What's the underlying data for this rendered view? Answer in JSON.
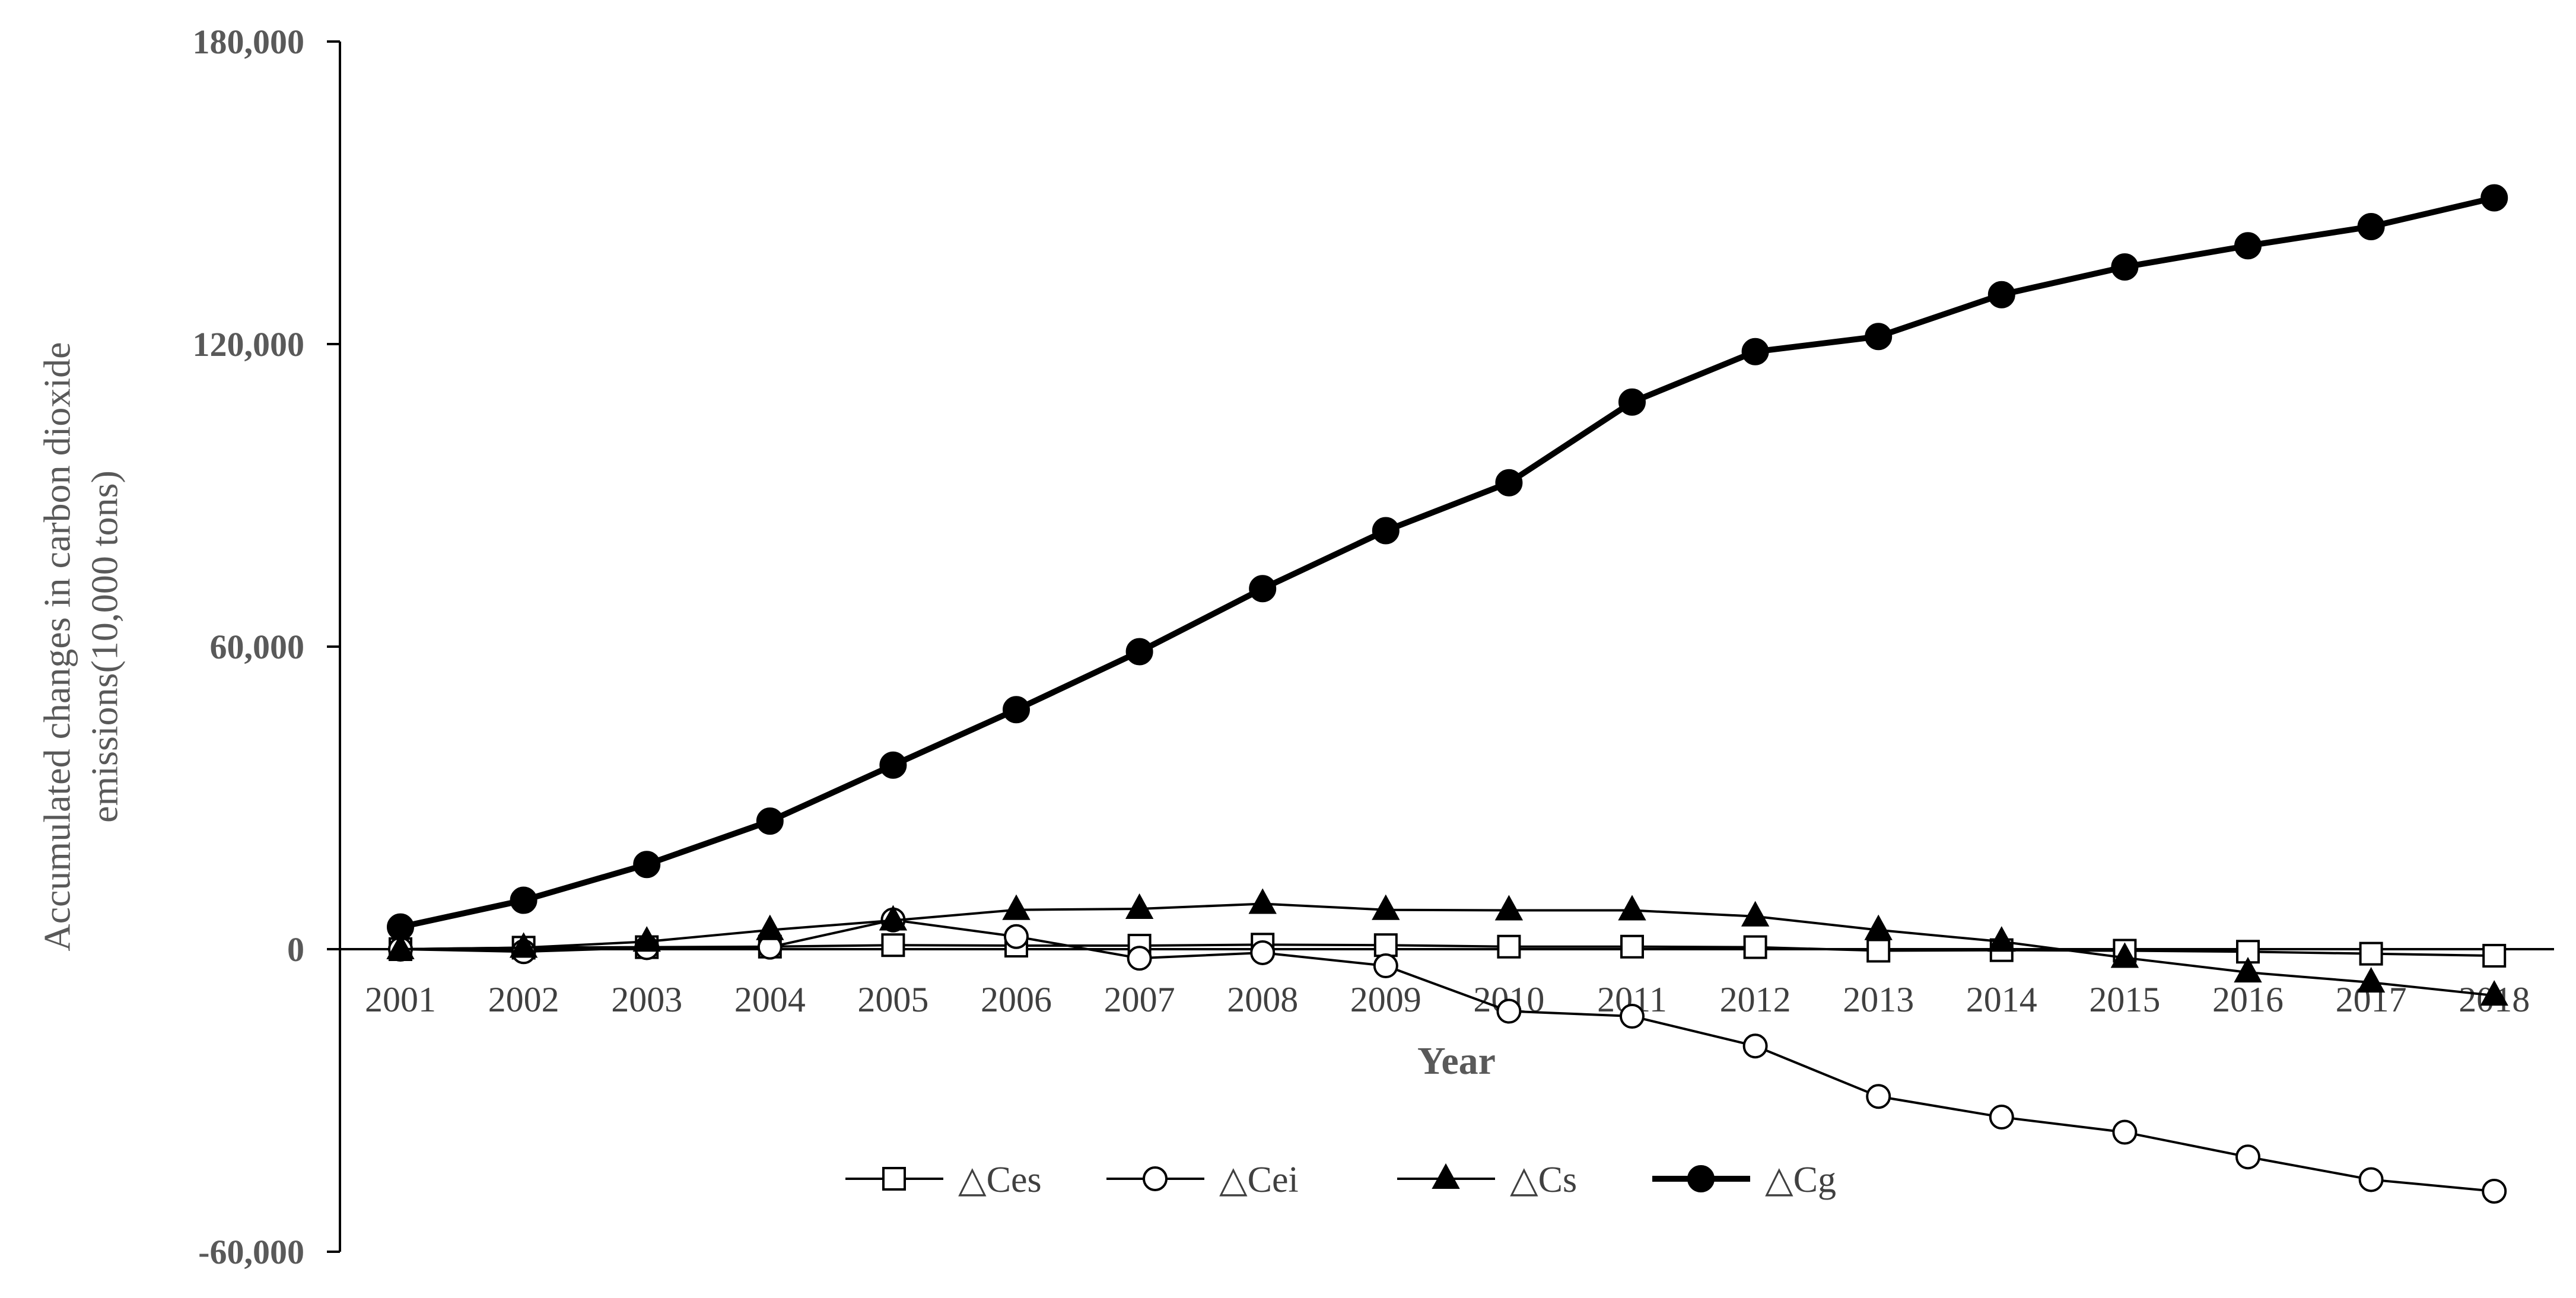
{
  "chart_data": {
    "type": "line",
    "title": "",
    "xlabel": "Year",
    "ylabel_lines": [
      "Accumulated changes  in carbon dioxide",
      "emissions(10,000 tons)"
    ],
    "ylim": [
      -60000,
      180000
    ],
    "yticks": [
      -60000,
      0,
      60000,
      120000,
      180000
    ],
    "ytick_labels": [
      "-60,000",
      "0",
      "60,000",
      "120,000",
      "180,000"
    ],
    "categories": [
      "2001",
      "2002",
      "2003",
      "2004",
      "2005",
      "2006",
      "2007",
      "2008",
      "2009",
      "2010",
      "2011",
      "2012",
      "2013",
      "2014",
      "2015",
      "2016",
      "2017",
      "2018"
    ],
    "grid": false,
    "legend_position": "bottom",
    "series": [
      {
        "name": "△Ces",
        "marker": "square-open",
        "line_width": "thin",
        "values": [
          0,
          300,
          400,
          500,
          800,
          700,
          700,
          900,
          800,
          500,
          500,
          400,
          -300,
          -200,
          -300,
          -500,
          -900,
          -1300
        ]
      },
      {
        "name": "△Cei",
        "marker": "circle-open",
        "line_width": "thin",
        "values": [
          0,
          -500,
          300,
          400,
          5800,
          2500,
          -1800,
          -700,
          -3300,
          -12300,
          -13300,
          -19200,
          -29200,
          -33300,
          -36300,
          -41200,
          -45700,
          -48000
        ]
      },
      {
        "name": "△Cs",
        "marker": "triangle-filled",
        "line_width": "thin",
        "values": [
          0,
          300,
          1500,
          3800,
          5700,
          7800,
          8000,
          9000,
          7800,
          7700,
          7700,
          6500,
          3800,
          1500,
          -1700,
          -4600,
          -6600,
          -9200
        ]
      },
      {
        "name": "△Cg",
        "marker": "circle-filled",
        "line_width": "thick",
        "values": [
          4400,
          9700,
          16800,
          25400,
          36500,
          47500,
          59000,
          71500,
          83000,
          92500,
          108500,
          118500,
          121500,
          129800,
          135300,
          139500,
          143300,
          149000
        ]
      }
    ]
  },
  "colors": {
    "axis": "#000000",
    "series": "#000000",
    "text": "#595959"
  }
}
